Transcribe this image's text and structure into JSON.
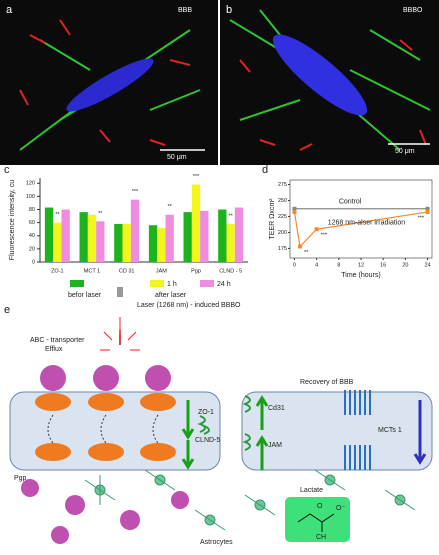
{
  "panels": {
    "a": {
      "label": "a",
      "tag": "BBB",
      "scale": "50 μm"
    },
    "b": {
      "label": "b",
      "tag": "BBBO",
      "scale": "50 μm"
    }
  },
  "chart_data": [
    {
      "type": "bar",
      "panel": "c",
      "y_label": "Fluorescence intensity, cu",
      "categories": [
        "ZO-1",
        "MCT 1",
        "CD 31",
        "JAM",
        "Pgp",
        "CLND - 5"
      ],
      "series": [
        {
          "name": "befor laser",
          "color": "#1db31d",
          "values": [
            83,
            76,
            58,
            56,
            76,
            80
          ]
        },
        {
          "name": "1 h",
          "color": "#f5f51e",
          "values": [
            60,
            72,
            58,
            52,
            118,
            58
          ]
        },
        {
          "name": "24 h",
          "color": "#f08ce0",
          "values": [
            80,
            62,
            95,
            72,
            78,
            83
          ]
        }
      ],
      "legend_group_label": "after laser",
      "annotations": [
        "**",
        "**",
        "***",
        "**",
        "***",
        "**"
      ],
      "ylim": [
        0,
        128
      ],
      "yticks": [
        0,
        20,
        40,
        60,
        80,
        100,
        120
      ]
    },
    {
      "type": "line",
      "panel": "d",
      "y_label": "TEER Ωxcm²",
      "x_label": "Time (hours)",
      "series": [
        {
          "name": "Control",
          "color": "#888888",
          "x": [
            0,
            24
          ],
          "values": [
            237,
            237
          ]
        },
        {
          "name": "1268 nm-alser irradiation",
          "color": "#f08a30",
          "x": [
            0,
            1,
            4,
            24
          ],
          "values": [
            232,
            178,
            205,
            232
          ]
        }
      ],
      "annotations": [
        "**",
        "***",
        "***"
      ],
      "xlim": [
        -0.8,
        24.8
      ],
      "xticks": [
        0,
        4,
        8,
        12,
        16,
        20,
        24
      ],
      "ylim": [
        160,
        282
      ],
      "yticks": [
        175,
        200,
        225,
        250,
        275
      ]
    }
  ],
  "diagram": {
    "label": "e",
    "laser": "Laser (1268 nm) - induced BBBO",
    "abc": "ABC - transporter",
    "efflux": "Efflux",
    "zo1": "ZO-1",
    "clnd5": "CLND-5",
    "pgp": "Pgp",
    "astrocytes": "Astrocytes",
    "recovery": "Recovery of BBB",
    "cd31": "Cd31",
    "jam": "JAM",
    "mcts": "MCTs 1",
    "lactate": "Lactate",
    "o": "O",
    "o_minus": "O⁻",
    "ch": "CH"
  }
}
